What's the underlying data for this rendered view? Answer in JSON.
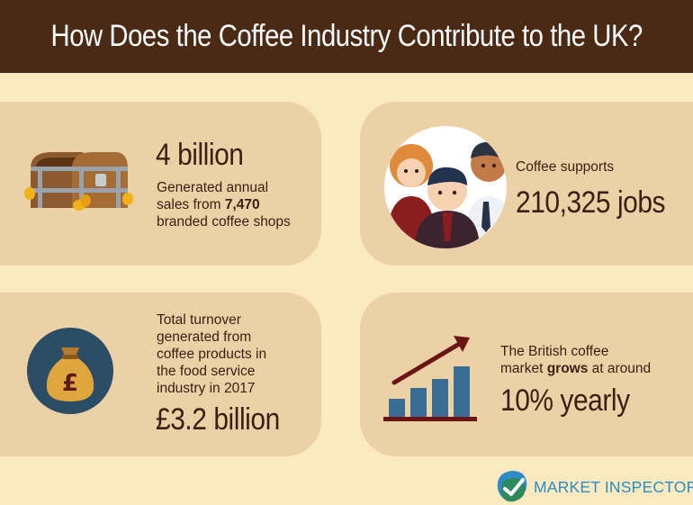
{
  "title": "How Does the Coffee Industry Contribute to the UK?",
  "cards": {
    "sales": {
      "headline": "4 billion",
      "line1": "Generated annual",
      "line2_prefix": "sales from ",
      "line2_bold": "7,470",
      "line3": "branded coffee shops",
      "icon": "treasure-chest-icon"
    },
    "jobs": {
      "intro": "Coffee supports",
      "headline": "210,325 jobs",
      "icon": "people-icon"
    },
    "turnover": {
      "lines": [
        "Total turnover",
        "generated from",
        "coffee products in",
        "the food service",
        "industry in 2017"
      ],
      "headline": "£3.2 billion",
      "icon": "money-bag-icon",
      "symbol": "£"
    },
    "growth": {
      "line1": "The British coffee",
      "line2_prefix": "market ",
      "line2_bold": "grows",
      "line2_suffix": " at around",
      "headline": "10% yearly",
      "icon": "growth-chart-icon"
    }
  },
  "logo": {
    "text": "MARKET INSPECTOR",
    "icon": "checkmark-logo-icon"
  },
  "colors": {
    "header_bg": "#4a2a14",
    "page_bg": "#fbe9c0",
    "card_bg": "#ecd1a7",
    "text": "#3b1f0f",
    "accent_dark_red": "#6b1414",
    "bar_blue": "#3a6d96",
    "logo_blue": "#2f8bc6"
  }
}
